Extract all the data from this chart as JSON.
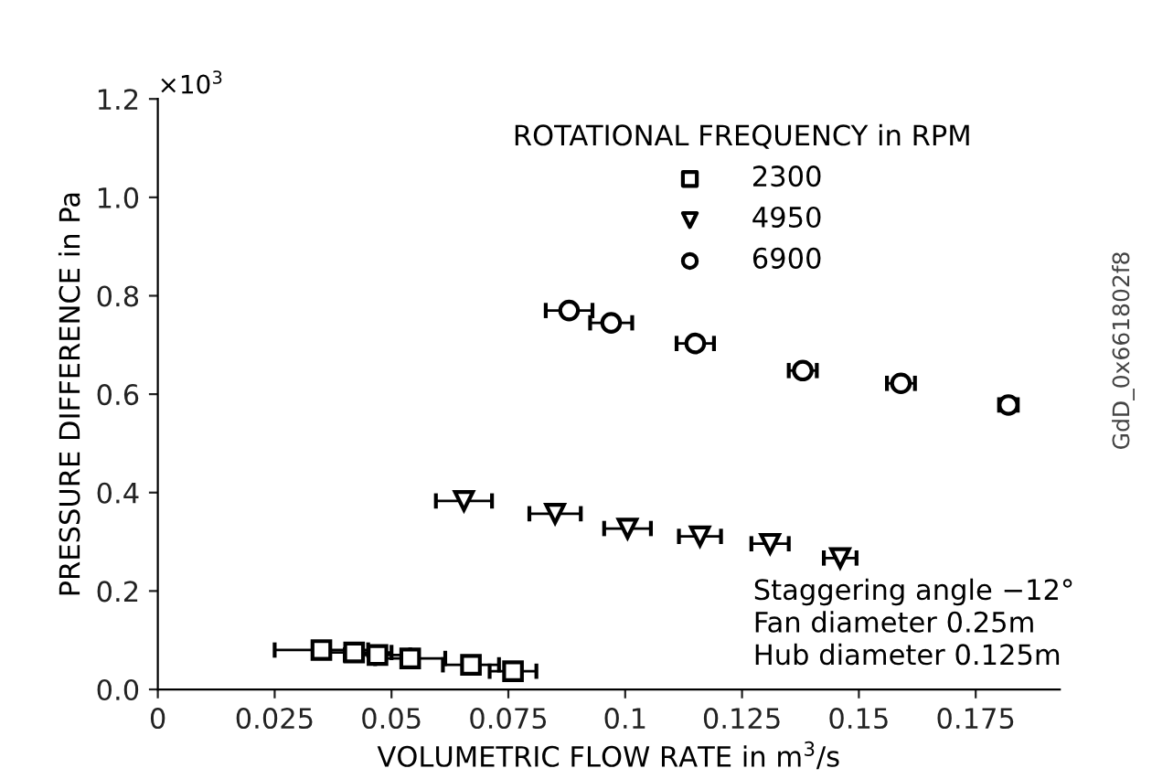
{
  "chart_data": {
    "type": "scatter",
    "xlabel": "VOLUMETRIC FLOW RATE in m$^{3}$/s",
    "ylabel": "PRESSURE DIFFERENCE in Pa",
    "legend_title": "ROTATIONAL FREQUENCY in RPM",
    "legend": "top right",
    "grid": false,
    "xlim": [
      0,
      0.193
    ],
    "xticks": [
      0,
      0.025,
      0.05,
      0.075,
      0.1,
      0.125,
      0.15,
      0.175
    ],
    "ylim": [
      0,
      1.2
    ],
    "yticks": [
      {
        "value": 0,
        "label": "0.0"
      },
      0.2,
      0.4,
      0.6,
      0.8,
      {
        "value": 1,
        "label": "1.0"
      },
      1.2
    ],
    "annotations": [
      "×10$^{3}$",
      "Staggering angle −12°",
      "Fan diameter 0.25m",
      "Hub diameter 0.125m",
      "GdD_0x661802f8"
    ],
    "series": [
      {
        "name": "2300",
        "color": "#000000",
        "marker": "square",
        "x": [
          0.035,
          0.042,
          0.047,
          0.054,
          0.067,
          0.076
        ],
        "values": [
          0.08,
          0.075,
          0.07,
          0.063,
          0.05,
          0.037
        ],
        "xerrors": [
          0.01,
          0.008,
          0.007,
          0.0075,
          0.006,
          0.005
        ]
      },
      {
        "name": "4950",
        "color": "#000000",
        "marker": "triangle",
        "x": [
          0.0655,
          0.085,
          0.1005,
          0.116,
          0.131,
          0.146
        ],
        "values": [
          0.383,
          0.357,
          0.327,
          0.311,
          0.296,
          0.267
        ],
        "xerrors": [
          0.006,
          0.0055,
          0.005,
          0.0045,
          0.004,
          0.0035
        ]
      },
      {
        "name": "6900",
        "color": "#000000",
        "marker": "circle",
        "x": [
          0.088,
          0.097,
          0.115,
          0.138,
          0.159,
          0.182
        ],
        "values": [
          0.77,
          0.745,
          0.703,
          0.648,
          0.622,
          0.578
        ],
        "xerrors": [
          0.005,
          0.0045,
          0.004,
          0.003,
          0.003,
          0.002
        ]
      }
    ]
  }
}
